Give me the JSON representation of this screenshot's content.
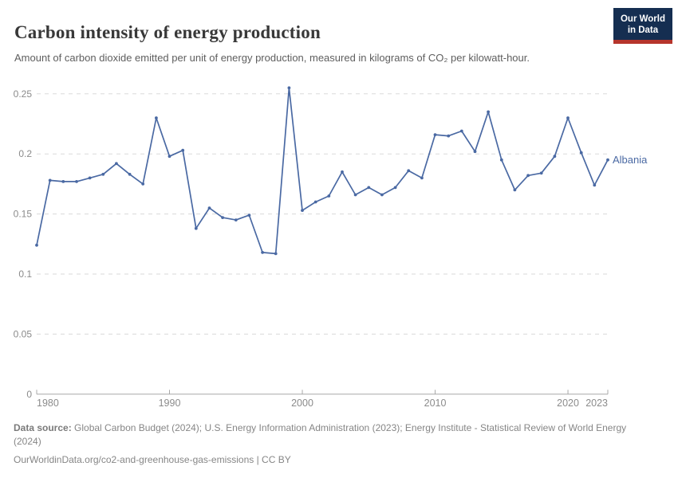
{
  "header": {
    "title": "Carbon intensity of energy production",
    "subtitle": "Amount of carbon dioxide emitted per unit of energy production, measured in kilograms of CO₂ per kilowatt-hour.",
    "logo": {
      "line1": "Our World",
      "line2": "in Data"
    }
  },
  "chart_data": {
    "type": "line",
    "title": "Carbon intensity of energy production",
    "xlabel": "",
    "ylabel": "",
    "xlim": [
      1980,
      2023
    ],
    "ylim": [
      0,
      0.26
    ],
    "grid": "horizontal-dashed",
    "legend_position": "end-of-line-label",
    "x_ticks": [
      1980,
      1990,
      2000,
      2010,
      2020,
      2023
    ],
    "y_ticks": [
      0,
      0.05,
      0.1,
      0.15,
      0.2,
      0.25
    ],
    "series": [
      {
        "name": "Albania",
        "color": "#4a69a3",
        "x": [
          1980,
          1981,
          1982,
          1983,
          1984,
          1985,
          1986,
          1987,
          1988,
          1989,
          1990,
          1991,
          1992,
          1993,
          1994,
          1995,
          1996,
          1997,
          1998,
          1999,
          2000,
          2001,
          2002,
          2003,
          2004,
          2005,
          2006,
          2007,
          2008,
          2009,
          2010,
          2011,
          2012,
          2013,
          2014,
          2015,
          2016,
          2017,
          2018,
          2019,
          2020,
          2021,
          2022,
          2023
        ],
        "values": [
          0.124,
          0.178,
          0.177,
          0.177,
          0.18,
          0.183,
          0.192,
          0.183,
          0.175,
          0.23,
          0.198,
          0.203,
          0.138,
          0.155,
          0.147,
          0.145,
          0.149,
          0.118,
          0.117,
          0.255,
          0.153,
          0.16,
          0.165,
          0.185,
          0.166,
          0.172,
          0.166,
          0.172,
          0.186,
          0.18,
          0.216,
          0.215,
          0.219,
          0.202,
          0.235,
          0.195,
          0.17,
          0.182,
          0.184,
          0.198,
          0.23,
          0.201,
          0.174,
          0.195
        ]
      }
    ],
    "colors": {
      "line": "#4a69a3",
      "gridline": "#dadada",
      "axis": "#a8a8a8",
      "tick_label": "#8b8b8b"
    }
  },
  "footer": {
    "data_source_label": "Data source:",
    "data_source_text": " Global Carbon Budget (2024); U.S. Energy Information Administration (2023); Energy Institute - Statistical Review of World Energy (2024)",
    "url": "OurWorldinData.org/co2-and-greenhouse-gas-emissions",
    "license": " | CC BY"
  }
}
